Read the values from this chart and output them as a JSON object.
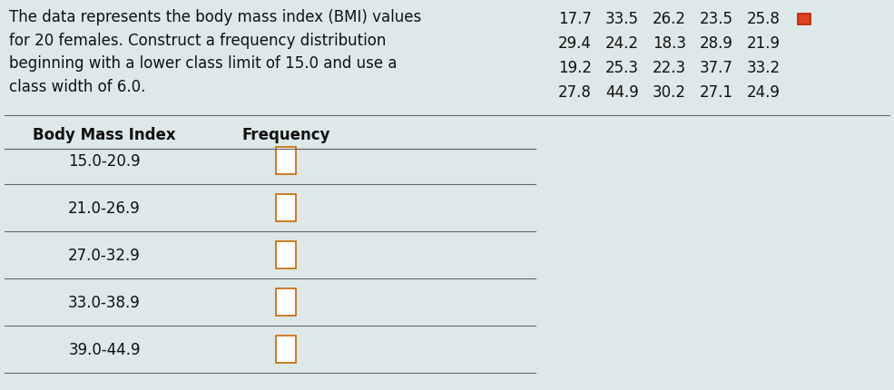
{
  "background_color": "#dde8e8",
  "description_text": "The data represents the body mass index (BMI) values\nfor 20 females. Construct a frequency distribution\nbeginning with a lower class limit of 15.0 and use a\nclass width of 6.0.",
  "data_values": [
    [
      "17.7",
      "33.5",
      "26.2",
      "23.5",
      "25.8"
    ],
    [
      "29.4",
      "24.2",
      "18.3",
      "28.9",
      "21.9"
    ],
    [
      "19.2",
      "25.3",
      "22.3",
      "37.7",
      "33.2"
    ],
    [
      "27.8",
      "44.9",
      "30.2",
      "27.1",
      "24.9"
    ]
  ],
  "table_header_col1": "Body Mass Index",
  "table_header_col2": "Frequency",
  "table_rows": [
    "15.0-20.9",
    "21.0-26.9",
    "27.0-32.9",
    "33.0-38.9",
    "39.0-44.9"
  ],
  "font_size_desc": 12,
  "font_size_table": 12,
  "font_size_data": 12,
  "checkbox_color": "#cc6600",
  "line_color": "#666666",
  "text_color": "#111111"
}
